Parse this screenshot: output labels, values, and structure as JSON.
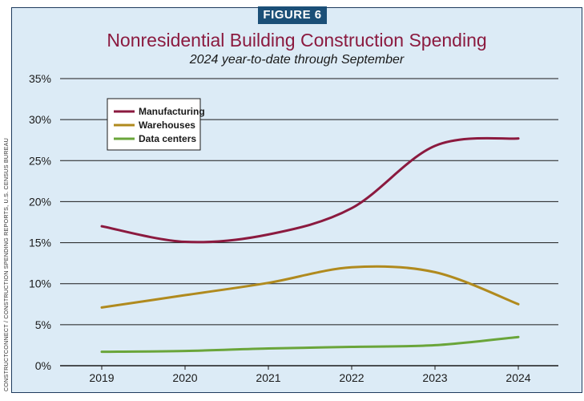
{
  "figure_label": "FIGURE 6",
  "source_note": "CONSTRUCTCONNECT / CONSTRUCTION SPENDING REPORTS, U.S. CENSUS BUREAU",
  "chart_data": {
    "type": "line",
    "title": "Nonresidential Building Construction Spending",
    "subtitle": "2024 year-to-date through September",
    "x": [
      "2019",
      "2020",
      "2021",
      "2022",
      "2023",
      "2024"
    ],
    "y_ticks": [
      "0%",
      "5%",
      "10%",
      "15%",
      "20%",
      "25%",
      "30%",
      "35%"
    ],
    "ylim": [
      0,
      35
    ],
    "grid": true,
    "legend_position": "top-left",
    "series": [
      {
        "name": "Manufacturing",
        "color": "#8b1a3f",
        "values": [
          17.0,
          15.1,
          16.0,
          19.2,
          26.8,
          27.7
        ]
      },
      {
        "name": "Warehouses",
        "color": "#b08a1e",
        "values": [
          7.1,
          8.6,
          10.1,
          12.0,
          11.4,
          7.5
        ]
      },
      {
        "name": "Data centers",
        "color": "#6aa53a",
        "values": [
          1.7,
          1.8,
          2.1,
          2.3,
          2.5,
          3.5
        ]
      }
    ]
  }
}
